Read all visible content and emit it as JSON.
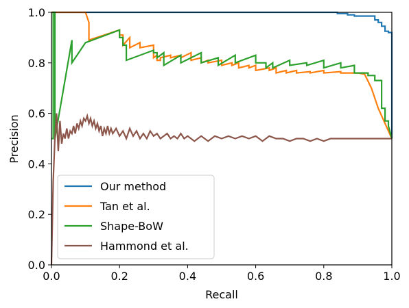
{
  "chart_data": {
    "type": "line",
    "title": "",
    "xlabel": "Recall",
    "ylabel": "Precision",
    "xlim": [
      0.0,
      1.0
    ],
    "ylim": [
      0.0,
      1.0
    ],
    "xticks": [
      "0.0",
      "0.2",
      "0.4",
      "0.6",
      "0.8",
      "1.0"
    ],
    "yticks": [
      "0.0",
      "0.2",
      "0.4",
      "0.6",
      "0.8",
      "1.0"
    ],
    "grid": false,
    "legend_position": "lower-left",
    "series": [
      {
        "name": "Our method",
        "color": "#1f77b4",
        "x": [
          0.0,
          0.84,
          0.84,
          0.87,
          0.87,
          0.89,
          0.89,
          0.95,
          0.95,
          0.96,
          0.96,
          0.97,
          0.97,
          0.98,
          0.98,
          0.99,
          0.99,
          1.0,
          1.0
        ],
        "y": [
          1.0,
          1.0,
          0.995,
          0.995,
          0.99,
          0.99,
          0.985,
          0.985,
          0.97,
          0.97,
          0.96,
          0.96,
          0.945,
          0.945,
          0.925,
          0.925,
          0.92,
          0.92,
          0.5
        ]
      },
      {
        "name": "Tan et al.",
        "color": "#ff7f0e",
        "x": [
          0.0,
          0.1,
          0.11,
          0.11,
          0.2,
          0.2,
          0.21,
          0.21,
          0.23,
          0.23,
          0.26,
          0.26,
          0.3,
          0.3,
          0.31,
          0.31,
          0.32,
          0.32,
          0.35,
          0.35,
          0.38,
          0.38,
          0.41,
          0.41,
          0.44,
          0.44,
          0.46,
          0.46,
          0.5,
          0.5,
          0.53,
          0.53,
          0.55,
          0.55,
          0.58,
          0.58,
          0.6,
          0.6,
          0.64,
          0.64,
          0.66,
          0.66,
          0.69,
          0.69,
          0.72,
          0.72,
          0.76,
          0.76,
          0.8,
          0.8,
          0.85,
          0.85,
          0.9,
          0.92,
          0.94,
          0.96,
          1.0
        ],
        "y": [
          1.0,
          1.0,
          0.96,
          0.89,
          0.93,
          0.91,
          0.91,
          0.87,
          0.9,
          0.86,
          0.88,
          0.86,
          0.87,
          0.82,
          0.83,
          0.81,
          0.81,
          0.82,
          0.83,
          0.82,
          0.83,
          0.82,
          0.84,
          0.81,
          0.82,
          0.8,
          0.81,
          0.8,
          0.81,
          0.79,
          0.8,
          0.79,
          0.8,
          0.78,
          0.79,
          0.78,
          0.79,
          0.77,
          0.78,
          0.77,
          0.78,
          0.76,
          0.77,
          0.76,
          0.77,
          0.76,
          0.765,
          0.76,
          0.77,
          0.76,
          0.765,
          0.76,
          0.76,
          0.755,
          0.7,
          0.62,
          0.5
        ]
      },
      {
        "name": "Shape-BoW",
        "color": "#2ca02c",
        "x": [
          0.0,
          0.005,
          0.005,
          0.01,
          0.01,
          0.06,
          0.06,
          0.1,
          0.2,
          0.2,
          0.21,
          0.21,
          0.22,
          0.22,
          0.3,
          0.3,
          0.31,
          0.31,
          0.33,
          0.33,
          0.38,
          0.38,
          0.44,
          0.44,
          0.49,
          0.49,
          0.54,
          0.54,
          0.6,
          0.6,
          0.63,
          0.63,
          0.65,
          0.65,
          0.7,
          0.7,
          0.75,
          0.75,
          0.8,
          0.8,
          0.85,
          0.85,
          0.89,
          0.89,
          0.93,
          0.93,
          0.95,
          0.95,
          0.97,
          0.97,
          0.98,
          0.98,
          0.99,
          0.99,
          1.0
        ],
        "y": [
          0.5,
          0.5,
          1.0,
          1.0,
          0.5,
          0.89,
          0.8,
          0.88,
          0.93,
          0.9,
          0.9,
          0.87,
          0.87,
          0.81,
          0.85,
          0.84,
          0.84,
          0.82,
          0.84,
          0.79,
          0.83,
          0.8,
          0.84,
          0.8,
          0.82,
          0.79,
          0.83,
          0.8,
          0.83,
          0.8,
          0.8,
          0.78,
          0.8,
          0.78,
          0.81,
          0.79,
          0.8,
          0.79,
          0.81,
          0.78,
          0.8,
          0.78,
          0.79,
          0.76,
          0.76,
          0.75,
          0.75,
          0.73,
          0.73,
          0.62,
          0.62,
          0.57,
          0.57,
          0.55,
          0.5
        ]
      },
      {
        "name": "Hammond et al.",
        "color": "#8c564b",
        "x": [
          0.0,
          0.005,
          0.01,
          0.015,
          0.02,
          0.025,
          0.03,
          0.035,
          0.04,
          0.045,
          0.05,
          0.055,
          0.06,
          0.065,
          0.07,
          0.075,
          0.08,
          0.085,
          0.09,
          0.095,
          0.1,
          0.105,
          0.11,
          0.115,
          0.12,
          0.125,
          0.13,
          0.135,
          0.14,
          0.145,
          0.15,
          0.155,
          0.16,
          0.165,
          0.17,
          0.175,
          0.18,
          0.19,
          0.2,
          0.21,
          0.22,
          0.23,
          0.24,
          0.25,
          0.26,
          0.27,
          0.28,
          0.29,
          0.3,
          0.31,
          0.32,
          0.33,
          0.34,
          0.35,
          0.36,
          0.37,
          0.38,
          0.39,
          0.4,
          0.42,
          0.44,
          0.46,
          0.48,
          0.5,
          0.52,
          0.54,
          0.56,
          0.58,
          0.6,
          0.62,
          0.64,
          0.66,
          0.68,
          0.7,
          0.72,
          0.74,
          0.76,
          0.78,
          0.8,
          0.82,
          0.85,
          0.88,
          0.91,
          0.94,
          0.97,
          1.0
        ],
        "y": [
          0.0,
          0.33,
          0.5,
          0.6,
          0.45,
          0.57,
          0.48,
          0.52,
          0.5,
          0.54,
          0.5,
          0.53,
          0.52,
          0.55,
          0.52,
          0.56,
          0.54,
          0.57,
          0.55,
          0.58,
          0.57,
          0.59,
          0.56,
          0.58,
          0.55,
          0.57,
          0.54,
          0.56,
          0.53,
          0.55,
          0.51,
          0.54,
          0.52,
          0.55,
          0.52,
          0.54,
          0.52,
          0.54,
          0.51,
          0.53,
          0.5,
          0.54,
          0.51,
          0.53,
          0.5,
          0.52,
          0.5,
          0.53,
          0.51,
          0.52,
          0.5,
          0.51,
          0.52,
          0.5,
          0.51,
          0.5,
          0.52,
          0.5,
          0.51,
          0.49,
          0.51,
          0.49,
          0.51,
          0.5,
          0.51,
          0.5,
          0.51,
          0.5,
          0.51,
          0.49,
          0.51,
          0.5,
          0.5,
          0.49,
          0.5,
          0.5,
          0.49,
          0.5,
          0.49,
          0.5,
          0.5,
          0.5,
          0.5,
          0.5,
          0.5,
          0.5
        ]
      }
    ]
  }
}
